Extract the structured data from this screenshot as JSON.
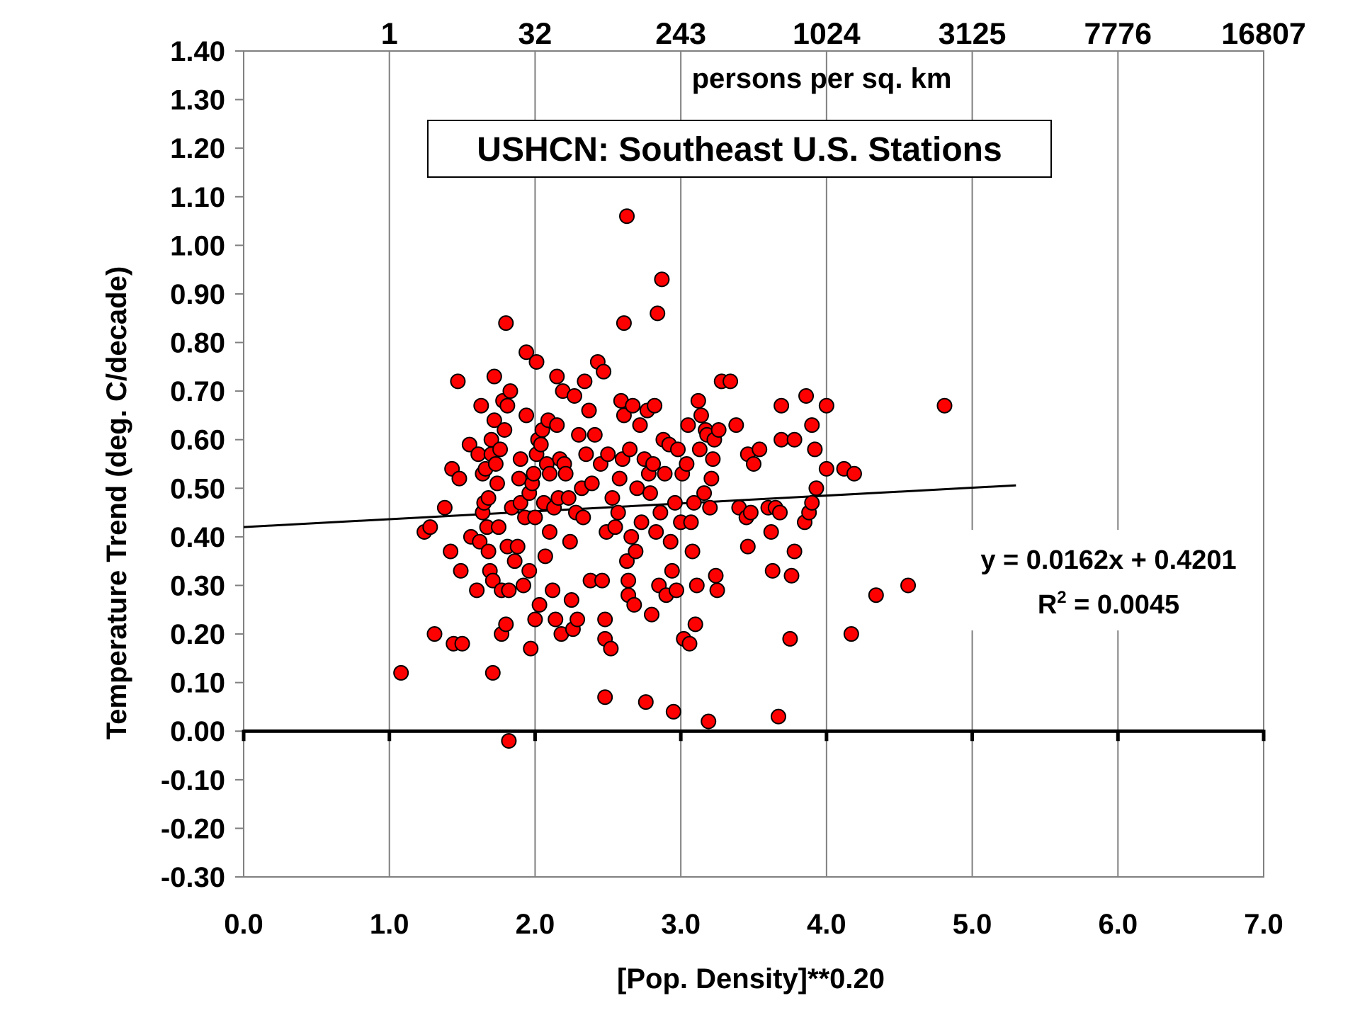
{
  "chart_data": {
    "type": "scatter",
    "title": "USHCN: Southeast U.S. Stations",
    "xlabel": "[Pop. Density]**0.20",
    "ylabel": "Temperature Trend (deg. C/decade)",
    "top_axis_label": "persons per sq. km",
    "xlim": [
      0,
      7
    ],
    "ylim": [
      -0.3,
      1.4
    ],
    "x_ticks": [
      0,
      1,
      2,
      3,
      4,
      5,
      6,
      7
    ],
    "x_tick_labels": [
      "0.0",
      "1.0",
      "2.0",
      "3.0",
      "4.0",
      "5.0",
      "6.0",
      "7.0"
    ],
    "y_ticks": [
      -0.3,
      -0.2,
      -0.1,
      0,
      0.1,
      0.2,
      0.3,
      0.4,
      0.5,
      0.6,
      0.7,
      0.8,
      0.9,
      1.0,
      1.1,
      1.2,
      1.3,
      1.4
    ],
    "y_tick_labels": [
      "-0.30",
      "-0.20",
      "-0.10",
      "0.00",
      "0.10",
      "0.20",
      "0.30",
      "0.40",
      "0.50",
      "0.60",
      "0.70",
      "0.80",
      "0.90",
      "1.00",
      "1.10",
      "1.20",
      "1.30",
      "1.40"
    ],
    "top_ticks": [
      1,
      2,
      3,
      4,
      5,
      6,
      7
    ],
    "top_tick_labels": [
      "1",
      "32",
      "243",
      "1024",
      "3125",
      "7776",
      "16807"
    ],
    "grid": {
      "vertical": true,
      "horizontal": false
    },
    "trendline": {
      "slope": 0.0162,
      "intercept": 0.4201,
      "x_range": [
        0,
        5.3
      ],
      "equation": "y = 0.0162x + 0.4201",
      "r2_prefix": "R",
      "r2_sup": "2",
      "r2_suffix": " = 0.0045"
    },
    "marker_color": "#ff0000",
    "points": [
      [
        1.08,
        0.12
      ],
      [
        1.24,
        0.41
      ],
      [
        1.28,
        0.42
      ],
      [
        1.31,
        0.2
      ],
      [
        1.38,
        0.46
      ],
      [
        1.42,
        0.37
      ],
      [
        1.43,
        0.54
      ],
      [
        1.44,
        0.18
      ],
      [
        1.47,
        0.72
      ],
      [
        1.48,
        0.52
      ],
      [
        1.49,
        0.33
      ],
      [
        1.5,
        0.18
      ],
      [
        1.55,
        0.59
      ],
      [
        1.56,
        0.4
      ],
      [
        1.6,
        0.29
      ],
      [
        1.61,
        0.57
      ],
      [
        1.62,
        0.39
      ],
      [
        1.63,
        0.67
      ],
      [
        1.64,
        0.45
      ],
      [
        1.64,
        0.53
      ],
      [
        1.65,
        0.47
      ],
      [
        1.66,
        0.54
      ],
      [
        1.67,
        0.42
      ],
      [
        1.68,
        0.48
      ],
      [
        1.68,
        0.37
      ],
      [
        1.69,
        0.33
      ],
      [
        1.7,
        0.57
      ],
      [
        1.7,
        0.6
      ],
      [
        1.71,
        0.31
      ],
      [
        1.71,
        0.12
      ],
      [
        1.72,
        0.64
      ],
      [
        1.72,
        0.73
      ],
      [
        1.73,
        0.55
      ],
      [
        1.74,
        0.51
      ],
      [
        1.75,
        0.42
      ],
      [
        1.76,
        0.58
      ],
      [
        1.77,
        0.29
      ],
      [
        1.77,
        0.2
      ],
      [
        1.78,
        0.68
      ],
      [
        1.79,
        0.62
      ],
      [
        1.8,
        0.84
      ],
      [
        1.8,
        0.22
      ],
      [
        1.81,
        0.67
      ],
      [
        1.81,
        0.38
      ],
      [
        1.82,
        -0.02
      ],
      [
        1.82,
        0.29
      ],
      [
        1.83,
        0.7
      ],
      [
        1.84,
        0.46
      ],
      [
        1.86,
        0.35
      ],
      [
        1.88,
        0.38
      ],
      [
        1.89,
        0.52
      ],
      [
        1.9,
        0.56
      ],
      [
        1.9,
        0.47
      ],
      [
        1.92,
        0.3
      ],
      [
        1.93,
        0.44
      ],
      [
        1.94,
        0.78
      ],
      [
        1.94,
        0.65
      ],
      [
        1.96,
        0.49
      ],
      [
        1.96,
        0.33
      ],
      [
        1.97,
        0.17
      ],
      [
        1.98,
        0.51
      ],
      [
        1.99,
        0.53
      ],
      [
        2,
        0.23
      ],
      [
        2.01,
        0.76
      ],
      [
        2,
        0.44
      ],
      [
        2.01,
        0.57
      ],
      [
        2.02,
        0.6
      ],
      [
        2.03,
        0.26
      ],
      [
        2.04,
        0.59
      ],
      [
        2.05,
        0.62
      ],
      [
        2.06,
        0.47
      ],
      [
        2.07,
        0.36
      ],
      [
        2.08,
        0.55
      ],
      [
        2.09,
        0.64
      ],
      [
        2.1,
        0.53
      ],
      [
        2.1,
        0.41
      ],
      [
        2.12,
        0.29
      ],
      [
        2.13,
        0.46
      ],
      [
        2.14,
        0.23
      ],
      [
        2.15,
        0.63
      ],
      [
        2.15,
        0.73
      ],
      [
        2.16,
        0.48
      ],
      [
        2.17,
        0.56
      ],
      [
        2.18,
        0.2
      ],
      [
        2.19,
        0.7
      ],
      [
        2.2,
        0.55
      ],
      [
        2.21,
        0.53
      ],
      [
        2.23,
        0.48
      ],
      [
        2.24,
        0.39
      ],
      [
        2.25,
        0.27
      ],
      [
        2.26,
        0.21
      ],
      [
        2.27,
        0.69
      ],
      [
        2.28,
        0.45
      ],
      [
        2.29,
        0.23
      ],
      [
        2.3,
        0.61
      ],
      [
        2.32,
        0.5
      ],
      [
        2.33,
        0.44
      ],
      [
        2.34,
        0.72
      ],
      [
        2.35,
        0.57
      ],
      [
        2.37,
        0.66
      ],
      [
        2.38,
        0.31
      ],
      [
        2.39,
        0.51
      ],
      [
        2.41,
        0.61
      ],
      [
        2.43,
        0.76
      ],
      [
        2.45,
        0.55
      ],
      [
        2.46,
        0.31
      ],
      [
        2.47,
        0.74
      ],
      [
        2.48,
        0.23
      ],
      [
        2.48,
        0.19
      ],
      [
        2.48,
        0.07
      ],
      [
        2.49,
        0.41
      ],
      [
        2.5,
        0.57
      ],
      [
        2.52,
        0.17
      ],
      [
        2.53,
        0.48
      ],
      [
        2.55,
        0.42
      ],
      [
        2.57,
        0.45
      ],
      [
        2.58,
        0.52
      ],
      [
        2.59,
        0.68
      ],
      [
        2.6,
        0.56
      ],
      [
        2.61,
        0.84
      ],
      [
        2.61,
        0.65
      ],
      [
        2.63,
        1.06
      ],
      [
        2.63,
        0.35
      ],
      [
        2.64,
        0.31
      ],
      [
        2.64,
        0.28
      ],
      [
        2.65,
        0.58
      ],
      [
        2.66,
        0.4
      ],
      [
        2.67,
        0.67
      ],
      [
        2.68,
        0.26
      ],
      [
        2.69,
        0.37
      ],
      [
        2.7,
        0.5
      ],
      [
        2.72,
        0.63
      ],
      [
        2.73,
        0.43
      ],
      [
        2.75,
        0.56
      ],
      [
        2.76,
        0.06
      ],
      [
        2.77,
        0.66
      ],
      [
        2.78,
        0.53
      ],
      [
        2.79,
        0.49
      ],
      [
        2.8,
        0.24
      ],
      [
        2.81,
        0.55
      ],
      [
        2.82,
        0.67
      ],
      [
        2.83,
        0.41
      ],
      [
        2.84,
        0.86
      ],
      [
        2.85,
        0.3
      ],
      [
        2.86,
        0.45
      ],
      [
        2.87,
        0.93
      ],
      [
        2.88,
        0.6
      ],
      [
        2.89,
        0.53
      ],
      [
        2.9,
        0.28
      ],
      [
        2.92,
        0.59
      ],
      [
        2.93,
        0.39
      ],
      [
        2.94,
        0.33
      ],
      [
        2.95,
        0.04
      ],
      [
        2.96,
        0.47
      ],
      [
        2.97,
        0.29
      ],
      [
        2.98,
        0.58
      ],
      [
        3,
        0.43
      ],
      [
        3.01,
        0.53
      ],
      [
        3.02,
        0.19
      ],
      [
        3.04,
        0.55
      ],
      [
        3.05,
        0.63
      ],
      [
        3.06,
        0.18
      ],
      [
        3.07,
        0.43
      ],
      [
        3.08,
        0.37
      ],
      [
        3.09,
        0.47
      ],
      [
        3.1,
        0.22
      ],
      [
        3.11,
        0.3
      ],
      [
        3.12,
        0.68
      ],
      [
        3.13,
        0.58
      ],
      [
        3.14,
        0.65
      ],
      [
        3.16,
        0.49
      ],
      [
        3.17,
        0.62
      ],
      [
        3.18,
        0.61
      ],
      [
        3.19,
        0.02
      ],
      [
        3.2,
        0.46
      ],
      [
        3.21,
        0.52
      ],
      [
        3.22,
        0.56
      ],
      [
        3.23,
        0.6
      ],
      [
        3.24,
        0.32
      ],
      [
        3.25,
        0.29
      ],
      [
        3.26,
        0.62
      ],
      [
        3.28,
        0.72
      ],
      [
        3.34,
        0.72
      ],
      [
        3.38,
        0.63
      ],
      [
        3.4,
        0.46
      ],
      [
        3.45,
        0.44
      ],
      [
        3.46,
        0.57
      ],
      [
        3.46,
        0.38
      ],
      [
        3.48,
        0.45
      ],
      [
        3.5,
        0.55
      ],
      [
        3.54,
        0.58
      ],
      [
        3.6,
        0.46
      ],
      [
        3.62,
        0.41
      ],
      [
        3.63,
        0.33
      ],
      [
        3.65,
        0.46
      ],
      [
        3.67,
        0.03
      ],
      [
        3.68,
        0.45
      ],
      [
        3.69,
        0.6
      ],
      [
        3.69,
        0.67
      ],
      [
        3.75,
        0.19
      ],
      [
        3.76,
        0.32
      ],
      [
        3.78,
        0.37
      ],
      [
        3.78,
        0.6
      ],
      [
        3.85,
        0.43
      ],
      [
        3.86,
        0.69
      ],
      [
        3.88,
        0.45
      ],
      [
        3.9,
        0.63
      ],
      [
        3.9,
        0.47
      ],
      [
        3.92,
        0.58
      ],
      [
        3.93,
        0.5
      ],
      [
        4,
        0.54
      ],
      [
        4,
        0.67
      ],
      [
        4.12,
        0.54
      ],
      [
        4.17,
        0.2
      ],
      [
        4.19,
        0.53
      ],
      [
        4.34,
        0.28
      ],
      [
        4.56,
        0.3
      ],
      [
        4.81,
        0.67
      ]
    ]
  }
}
